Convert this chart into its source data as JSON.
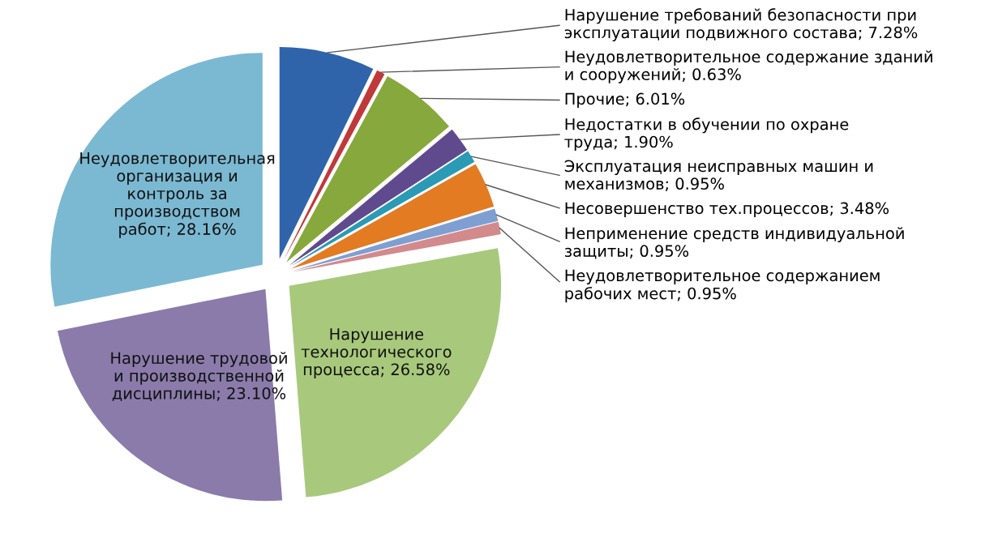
{
  "chart_data": {
    "type": "pie",
    "categories": [
      "Нарушение требований безопасности при эксплуатации подвижного состава",
      "Неудовлетворительное содержание зданий и сооружений",
      "Прочие",
      "Недостатки в обучении по охране труда",
      "Эксплуатация неисправных машин и механизмов",
      "Несовершенство тех.процессов",
      "Неприменение средств индивидуальной защиты",
      "Неудовлетворительное содержанием рабочих мест",
      "Нарушение технологического процесса",
      "Нарушение трудовой и производственной дисциплины",
      "Неудовлетворительная организация и контроль за производством работ"
    ],
    "values": [
      7.28,
      0.63,
      6.01,
      1.9,
      0.95,
      3.48,
      0.95,
      0.95,
      26.58,
      23.1,
      28.16
    ],
    "value_labels": [
      "7.28%",
      "0.63%",
      "6.01%",
      "1.90%",
      "0.95%",
      "3.48%",
      "0.95%",
      "0.95%",
      "26.58%",
      "23.10%",
      "28.16%"
    ],
    "colors": [
      "#2f64ab",
      "#c0393a",
      "#86a83c",
      "#604a8e",
      "#2a9ab5",
      "#e27b22",
      "#7f9fd3",
      "#d28a8c",
      "#a8c97c",
      "#8b7bab",
      "#7bb9d2"
    ]
  }
}
